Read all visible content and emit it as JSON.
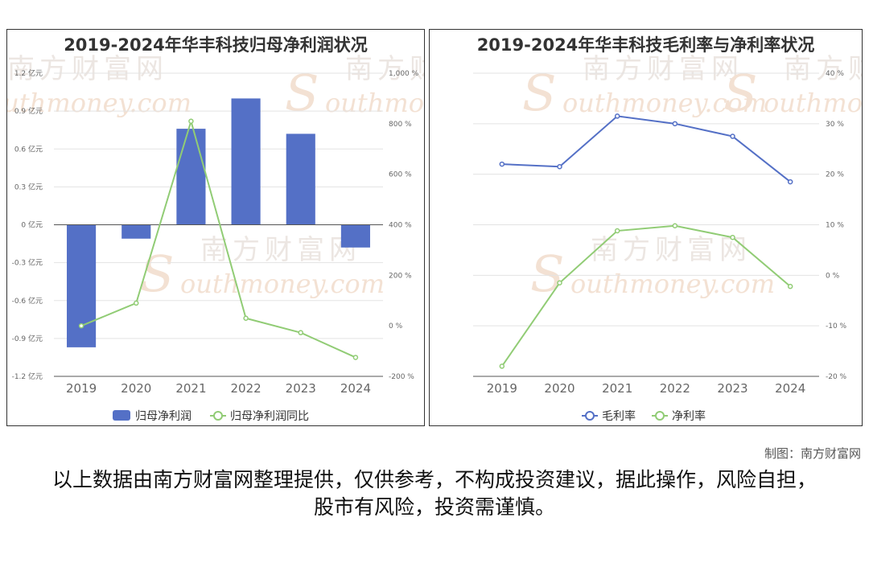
{
  "charts": {
    "left": {
      "title": "2019-2024年华丰科技归母净利润状况"
    },
    "right": {
      "title": "2019-2024年华丰科技毛利率与净利率状况"
    }
  },
  "watermark": {
    "cn": "南方财富网",
    "en": "outhmoney.com",
    "s": "S"
  },
  "colors": {
    "bar": "#5470c6",
    "line_green": "#91cc75",
    "line_blue": "#5470c6"
  },
  "credit": "制图：南方财富网",
  "disclaimer": "以上数据由南方财富网整理提供，仅供参考，不构成投资建议，据此操作，风险自担，股市有风险，投资需谨慎。",
  "chart_data": [
    {
      "type": "bar",
      "title": "2019-2024年华丰科技归母净利润状况",
      "categories": [
        "2019",
        "2020",
        "2021",
        "2022",
        "2023",
        "2024"
      ],
      "series": [
        {
          "name": "归母净利润",
          "type": "bar",
          "axis": "left",
          "values": [
            -0.97,
            -0.11,
            0.76,
            1.0,
            0.72,
            -0.18
          ]
        },
        {
          "name": "归母净利润同比",
          "type": "line",
          "axis": "right",
          "values": [
            0,
            90,
            810,
            30,
            -27,
            -125
          ]
        }
      ],
      "y_left": {
        "min": -1.2,
        "max": 1.2,
        "ticks": [
          1.2,
          0.9,
          0.6,
          0.3,
          0,
          -0.3,
          -0.6,
          -0.9,
          -1.2
        ],
        "tick_labels": [
          "1.2 亿元",
          "0.9 亿元",
          "0.6 亿元",
          "0.3 亿元",
          "0 亿元",
          "-0.3 亿元",
          "-0.6 亿元",
          "-0.9 亿元",
          "-1.2 亿元"
        ]
      },
      "y_right": {
        "min": -200,
        "max": 1000,
        "ticks": [
          1000,
          800,
          600,
          400,
          200,
          0,
          -200
        ],
        "tick_labels": [
          "1,000 %",
          "800 %",
          "600 %",
          "400 %",
          "200 %",
          "0 %",
          "-200 %"
        ]
      },
      "legend": "bottom",
      "grid": true
    },
    {
      "type": "line",
      "title": "2019-2024年华丰科技毛利率与净利率状况",
      "categories": [
        "2019",
        "2020",
        "2021",
        "2022",
        "2023",
        "2024"
      ],
      "series": [
        {
          "name": "毛利率",
          "values": [
            22.0,
            21.5,
            31.5,
            30.0,
            27.5,
            18.5
          ]
        },
        {
          "name": "净利率",
          "values": [
            -18.0,
            -1.5,
            8.8,
            9.8,
            7.5,
            -2.2
          ]
        }
      ],
      "y": {
        "min": -20,
        "max": 40,
        "ticks": [
          40,
          30,
          20,
          10,
          0,
          -10,
          -20
        ],
        "tick_labels": [
          "40 %",
          "30 %",
          "20 %",
          "10 %",
          "0 %",
          "-10 %",
          "-20 %"
        ]
      },
      "legend": "bottom",
      "grid": true
    }
  ]
}
